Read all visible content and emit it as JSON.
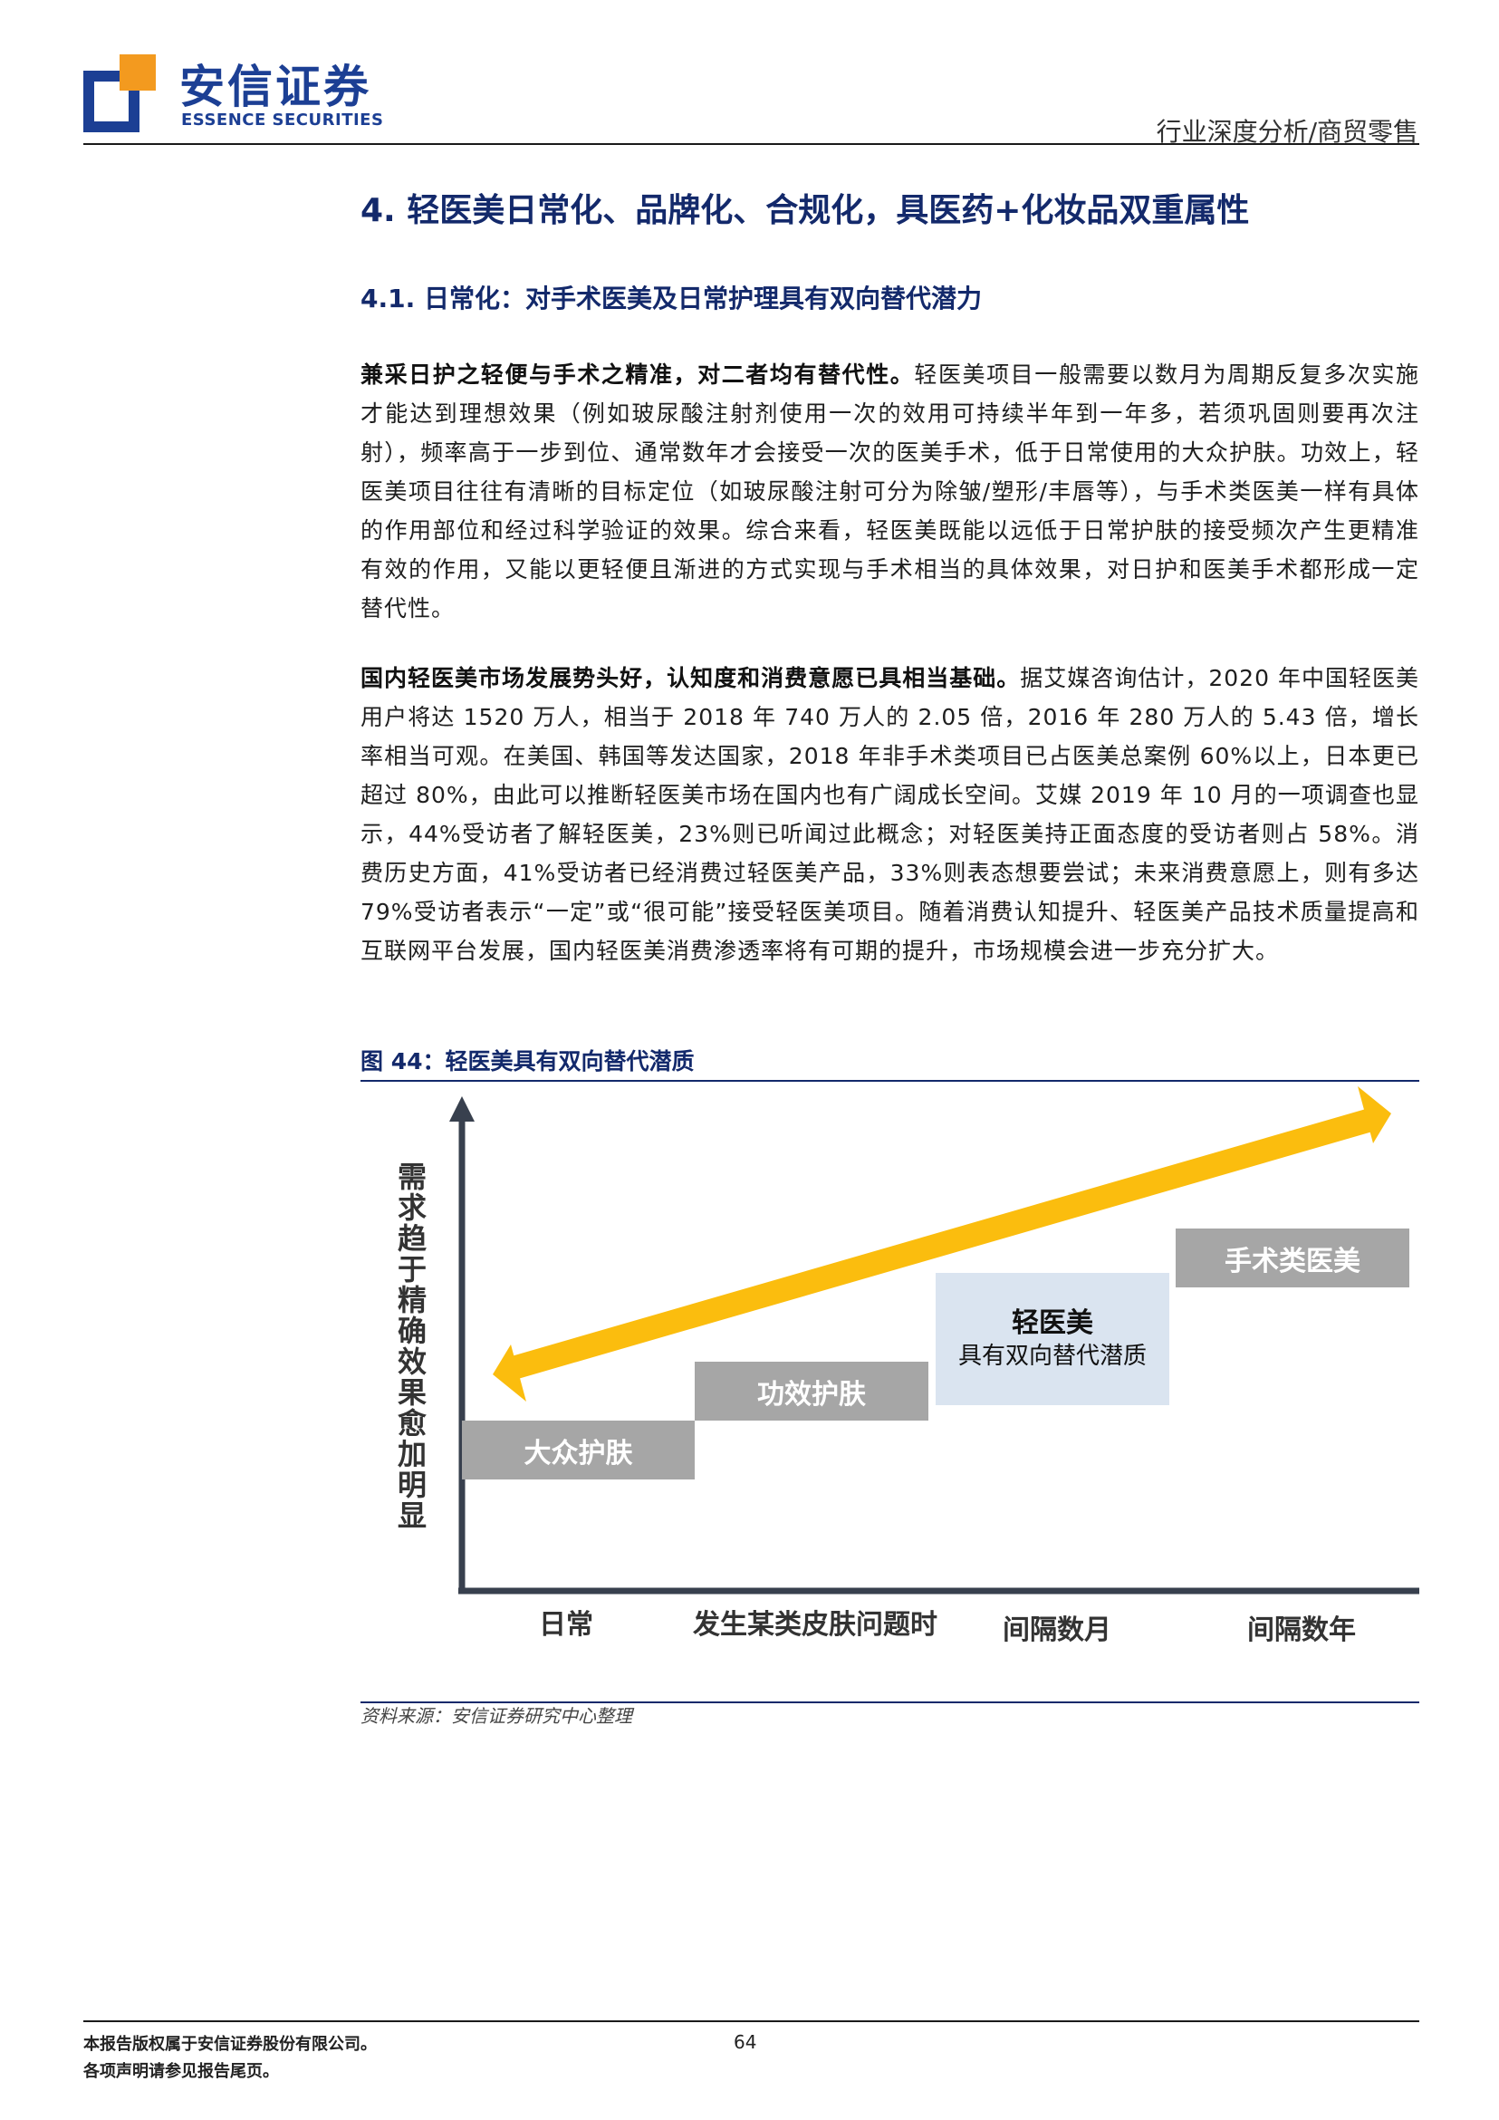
{
  "header": {
    "logo_cn": "安信证券",
    "logo_en": "ESSENCE SECURITIES",
    "category": "行业深度分析/商贸零售"
  },
  "section": {
    "h1": "4. 轻医美日常化、品牌化、合规化，具医药+化妆品双重属性",
    "h2": "4.1. 日常化：对手术医美及日常护理具有双向替代潜力"
  },
  "paragraphs": {
    "p1_lead": "兼采日护之轻便与手术之精准，对二者均有替代性。",
    "p1_body": "轻医美项目一般需要以数月为周期反复多次实施才能达到理想效果（例如玻尿酸注射剂使用一次的效用可持续半年到一年多，若须巩固则要再次注射），频率高于一步到位、通常数年才会接受一次的医美手术，低于日常使用的大众护肤。功效上，轻医美项目往往有清晰的目标定位（如玻尿酸注射可分为除皱/塑形/丰唇等），与手术类医美一样有具体的作用部位和经过科学验证的效果。综合来看，轻医美既能以远低于日常护肤的接受频次产生更精准有效的作用，又能以更轻便且渐进的方式实现与手术相当的具体效果，对日护和医美手术都形成一定替代性。",
    "p2_lead": "国内轻医美市场发展势头好，认知度和消费意愿已具相当基础。",
    "p2_body": "据艾媒咨询估计，2020 年中国轻医美用户将达 1520 万人，相当于 2018 年 740 万人的 2.05 倍，2016 年 280 万人的 5.43 倍，增长率相当可观。在美国、韩国等发达国家，2018 年非手术类项目已占医美总案例 60%以上，日本更已超过 80%，由此可以推断轻医美市场在国内也有广阔成长空间。艾媒 2019 年 10 月的一项调查也显示，44%受访者了解轻医美，23%则已听闻过此概念；对轻医美持正面态度的受访者则占 58%。消费历史方面，41%受访者已经消费过轻医美产品，33%则表态想要尝试；未来消费意愿上，则有多达 79%受访者表示“一定”或“很可能”接受轻医美项目。随着消费认知提升、轻医美产品技术质量提高和互联网平台发展，国内轻医美消费渗透率将有可期的提升，市场规模会进一步充分扩大。"
  },
  "figure": {
    "title": "图 44：轻医美具有双向替代潜质",
    "y_label": "需求趋于精确 效果愈加明显",
    "bars": {
      "b1": "大众护肤",
      "b2": "功效护肤",
      "b3_title": "轻医美",
      "b3_sub": "具有双向替代潜质",
      "b4": "手术类医美"
    },
    "x_labels": {
      "x1": "日常",
      "x2": "发生某类皮肤问题时",
      "x3": "间隔数月",
      "x4": "间隔数年"
    },
    "colors": {
      "arrow": "#fbbd0e",
      "bar_grey": "#a6a6a6",
      "bar_highlight": "#dae4f0",
      "axis": "#38404e"
    },
    "source": "资料来源：安信证券研究中心整理"
  },
  "footer": {
    "line1": "本报告版权属于安信证券股份有限公司。",
    "line2": "各项声明请参见报告尾页。",
    "page": "64"
  }
}
